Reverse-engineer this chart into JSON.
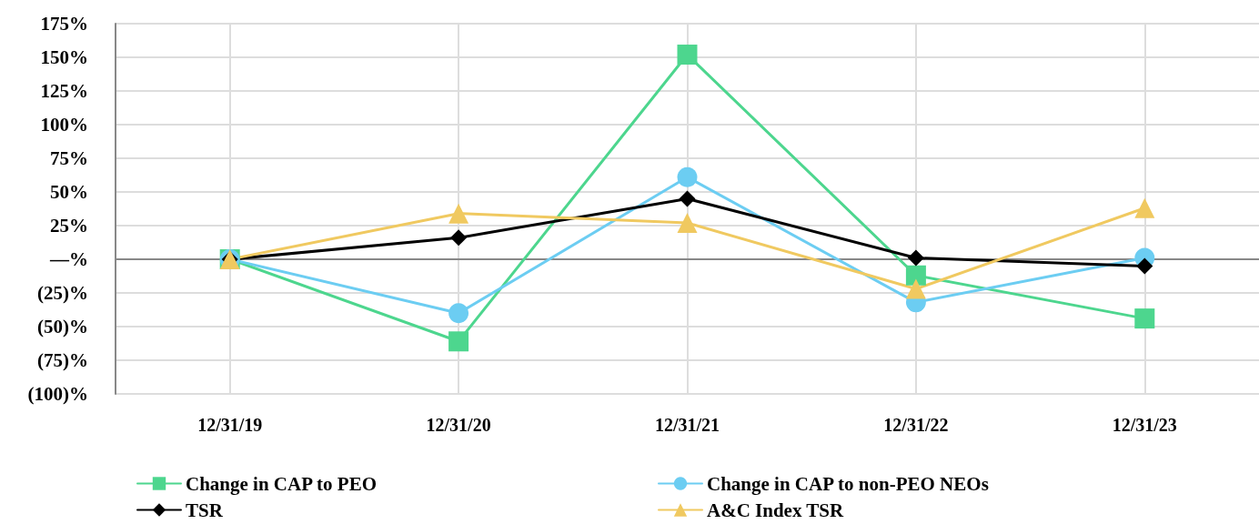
{
  "chart_data": {
    "type": "line",
    "categories": [
      "12/31/19",
      "12/31/20",
      "12/31/21",
      "12/31/22",
      "12/31/23"
    ],
    "series": [
      {
        "name": "Change in CAP to PEO",
        "color": "#4dd68e",
        "marker": "square",
        "values": [
          0,
          -61,
          152,
          -12,
          -44
        ]
      },
      {
        "name": "Change in CAP to non-PEO NEOs",
        "color": "#6ccdf2",
        "marker": "circle",
        "values": [
          0,
          -40,
          61,
          -32,
          1
        ]
      },
      {
        "name": "TSR",
        "color": "#000000",
        "marker": "diamond",
        "values": [
          0,
          16,
          45,
          1,
          -5
        ]
      },
      {
        "name": "A&C Index TSR",
        "color": "#f0c960",
        "marker": "triangle",
        "values": [
          0,
          34,
          27,
          -22,
          38
        ]
      }
    ],
    "ylim": [
      -100,
      175
    ],
    "yticks": [
      {
        "value": -100,
        "label": "(100)%"
      },
      {
        "value": -75,
        "label": "(75)%"
      },
      {
        "value": -50,
        "label": "(50)%"
      },
      {
        "value": -25,
        "label": "(25)%"
      },
      {
        "value": 0,
        "label": "—%"
      },
      {
        "value": 25,
        "label": "25%"
      },
      {
        "value": 50,
        "label": "50%"
      },
      {
        "value": 75,
        "label": "75%"
      },
      {
        "value": 100,
        "label": "100%"
      },
      {
        "value": 125,
        "label": "125%"
      },
      {
        "value": 150,
        "label": "150%"
      },
      {
        "value": 175,
        "label": "175%"
      }
    ],
    "grid": true,
    "legend": "bottom",
    "line_style": "solid"
  }
}
